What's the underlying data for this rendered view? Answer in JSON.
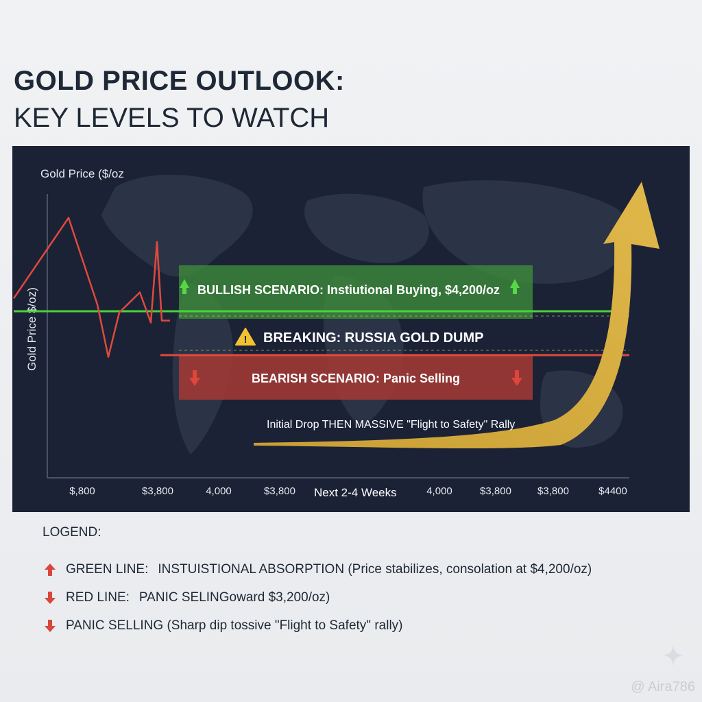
{
  "title": {
    "line1": "GOLD PRICE OUTLOOK:",
    "line2": "KEY LEVELS TO WATCH"
  },
  "chart_data": {
    "type": "line",
    "title": "Gold Price ($/oz",
    "ylabel": "Gold Price $/oz)",
    "xlabel": "Next 2-4 Weeks",
    "x_tick_labels": [
      "$,800",
      "$3,800",
      "4,000",
      "$3,800",
      "4,000",
      "$3,800",
      "$3,800",
      "$4400"
    ],
    "grid": false,
    "series": [
      {
        "color": "#e04a3c",
        "values": [
          0.55,
          0.95,
          0.52,
          0.26,
          0.48,
          0.58,
          0.43,
          0.83,
          0.44,
          0.44
        ]
      }
    ],
    "levels": [
      {
        "label": "BULLISH SCENARIO: Instiutional Buying, $4,200/oz",
        "color": "#4cd13a"
      },
      {
        "label": "BEARISH SCENARIO: Panic Selling",
        "color": "#d8473b"
      }
    ],
    "annotations": [
      {
        "text": "BREAKING: RUSSIA GOLD DUMP",
        "icon": "warning-icon"
      },
      {
        "text": "Initial Drop THEN MASSIVE \"Flight to Safety\" Rally"
      }
    ],
    "colors": {
      "bullish": "#4cd13a",
      "bearish": "#d8473b",
      "rally": "#d4a63a",
      "panel": "#1b2236"
    }
  },
  "legend": {
    "title": "LOGEND:",
    "items": [
      {
        "icon": "arrow-up-icon",
        "color": "#d8473b",
        "key": "GREEN LINE:",
        "desc": "INSTUISTIONAL ABSORPTION (Price stabilizes, consolation at $4,200/oz)"
      },
      {
        "icon": "arrow-down-icon",
        "color": "#d8473b",
        "key": "RED LINE:",
        "desc": "PANIC SELINGoward $3,200/oz)"
      },
      {
        "icon": "arrow-down-icon",
        "color": "#d8473b",
        "key": "",
        "desc": "PANIC SELLING (Sharp dip tossive \"Flight to Safety\" rally)"
      }
    ]
  },
  "watermark": "@ Aira786"
}
